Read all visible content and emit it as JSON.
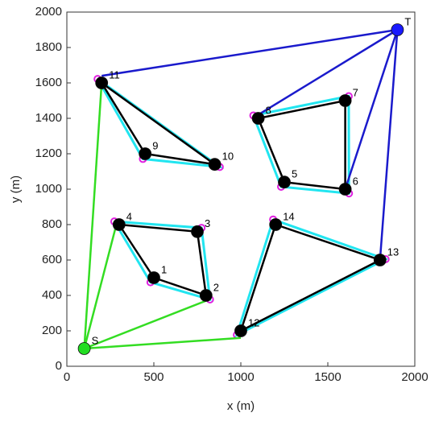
{
  "chart_data": {
    "type": "network",
    "xlabel": "x (m)",
    "ylabel": "y (m)",
    "xlim": [
      0,
      2000
    ],
    "xticks": [
      0,
      500,
      1000,
      1500,
      2000
    ],
    "ylim": [
      0,
      2000
    ],
    "yticks": [
      0,
      200,
      400,
      600,
      800,
      1000,
      1200,
      1400,
      1600,
      1800,
      2000
    ],
    "nodes": {
      "labels": [
        "S",
        "T",
        "1",
        "2",
        "3",
        "4",
        "5",
        "6",
        "7",
        "8",
        "9",
        "10",
        "11",
        "12",
        "13",
        "14"
      ],
      "x": [
        100,
        1900,
        500,
        800,
        750,
        300,
        1250,
        1600,
        1600,
        1100,
        450,
        850,
        200,
        1000,
        1800,
        1200
      ],
      "y": [
        100,
        1900,
        500,
        400,
        760,
        800,
        1040,
        1000,
        1500,
        1400,
        1200,
        1140,
        1600,
        200,
        600,
        800
      ],
      "colors": [
        "#22dd22",
        "#1a1aff",
        "#000000",
        "#000000",
        "#000000",
        "#000000",
        "#000000",
        "#000000",
        "#000000",
        "#000000",
        "#000000",
        "#000000",
        "#000000",
        "#000000",
        "#000000",
        "#000000"
      ]
    },
    "paths": [
      {
        "color": "#000000",
        "outline_color": "#22e5f0",
        "x": [
          300,
          750,
          800,
          500,
          300
        ],
        "y": [
          800,
          760,
          400,
          500,
          800
        ]
      },
      {
        "color": "#000000",
        "outline_color": "#22e5f0",
        "x": [
          1100,
          1600,
          1600,
          1250,
          1100
        ],
        "y": [
          1400,
          1500,
          1000,
          1040,
          1400
        ]
      },
      {
        "color": "#000000",
        "outline_color": "#22e5f0",
        "x": [
          200,
          850,
          450,
          200
        ],
        "y": [
          1600,
          1140,
          1200,
          1600
        ]
      },
      {
        "color": "#000000",
        "outline_color": "#22e5f0",
        "x": [
          1200,
          1800,
          1000,
          1200
        ],
        "y": [
          800,
          600,
          200,
          800
        ]
      },
      {
        "color": "#33dd22",
        "x": [
          100,
          290
        ],
        "y": [
          100,
          820
        ]
      },
      {
        "color": "#33dd22",
        "x": [
          100,
          200
        ],
        "y": [
          100,
          1600
        ]
      },
      {
        "color": "#33dd22",
        "x": [
          100,
          800
        ],
        "y": [
          100,
          370
        ]
      },
      {
        "color": "#33dd22",
        "x": [
          100,
          1000
        ],
        "y": [
          100,
          160
        ]
      },
      {
        "color": "#1a1acc",
        "x": [
          200,
          1900
        ],
        "y": [
          1640,
          1900
        ]
      },
      {
        "color": "#1a1acc",
        "x": [
          1100,
          1900
        ],
        "y": [
          1420,
          1900
        ]
      },
      {
        "color": "#1a1acc",
        "x": [
          1600,
          1900
        ],
        "y": [
          1000,
          1900
        ]
      },
      {
        "color": "#1a1acc",
        "x": [
          1800,
          1900
        ],
        "y": [
          600,
          1900
        ]
      }
    ]
  }
}
